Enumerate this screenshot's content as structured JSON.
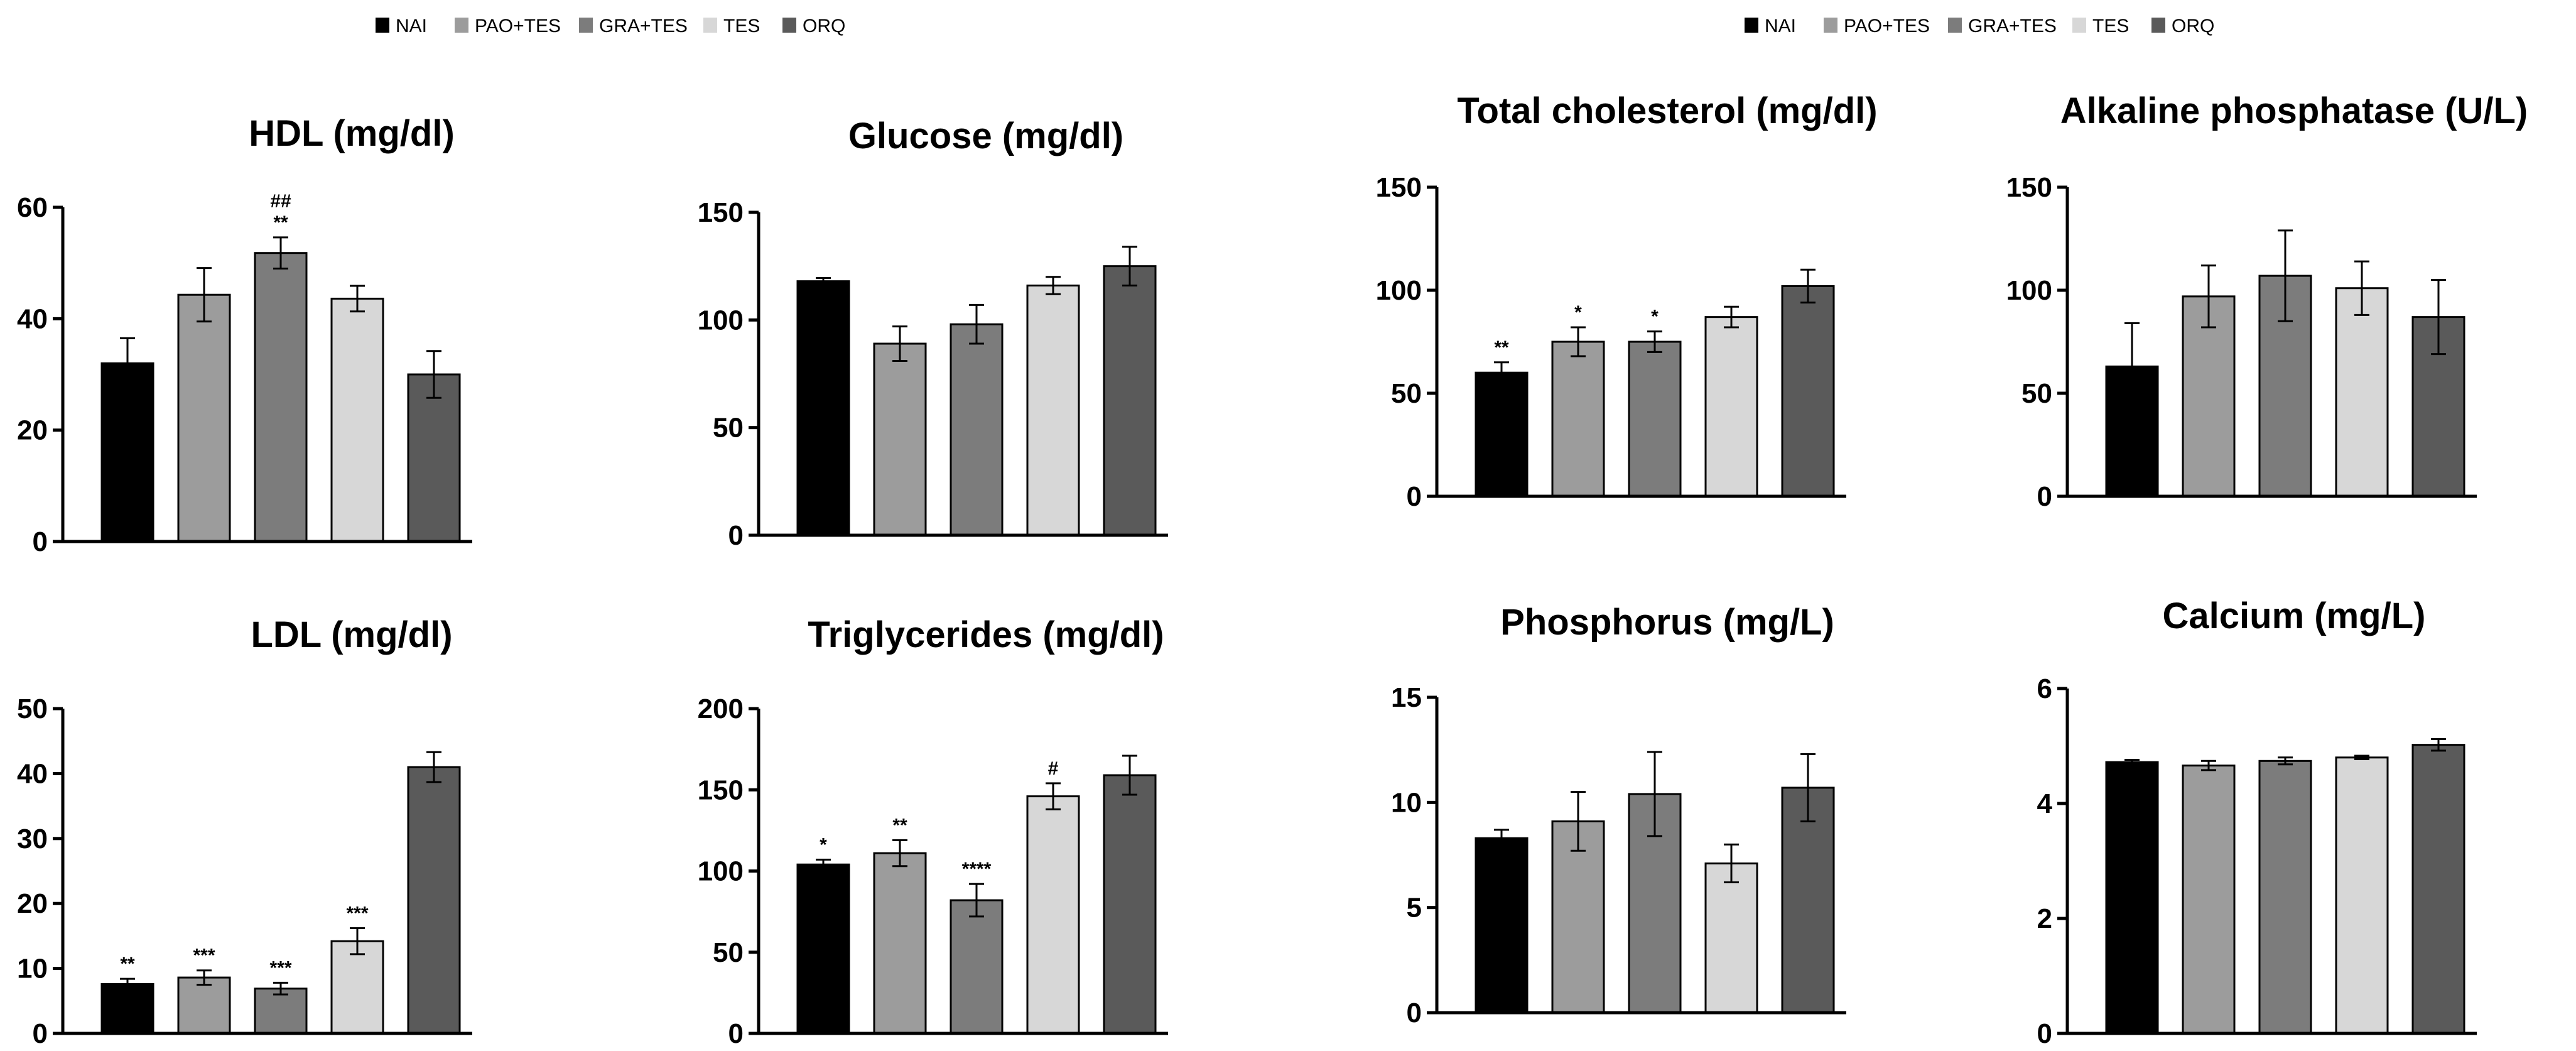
{
  "groups": [
    "NAI",
    "PAO+TES",
    "GRA+TES",
    "TES",
    "ORQ"
  ],
  "group_colors": [
    "#000000",
    "#9c9c9c",
    "#7c7c7c",
    "#d7d7d7",
    "#5a5a5a"
  ],
  "chart_data": [
    {
      "type": "bar",
      "title": "HDL (mg/dl)",
      "categories": [
        "NAI",
        "PAO+TES",
        "GRA+TES",
        "TES",
        "ORQ"
      ],
      "values": [
        32,
        44.3,
        51.8,
        43.6,
        30
      ],
      "errors": [
        4.5,
        4.8,
        2.8,
        2.3,
        4.2
      ],
      "annotations": [
        "",
        "",
        "**\n##",
        "",
        ""
      ],
      "ylim": [
        0,
        60
      ],
      "yticks": [
        "0",
        "20",
        "40",
        "60"
      ]
    },
    {
      "type": "bar",
      "title": "Glucose (mg/dl)",
      "categories": [
        "NAI",
        "PAO+TES",
        "GRA+TES",
        "TES",
        "ORQ"
      ],
      "values": [
        118,
        89,
        98,
        116,
        125
      ],
      "errors": [
        1.5,
        8,
        9,
        4,
        9
      ],
      "annotations": [
        "",
        "",
        "",
        "",
        ""
      ],
      "ylim": [
        0,
        150
      ],
      "yticks": [
        "0",
        "50",
        "100",
        "150"
      ]
    },
    {
      "type": "bar",
      "title": "LDL (mg/dl)",
      "categories": [
        "NAI",
        "PAO+TES",
        "GRA+TES",
        "TES",
        "ORQ"
      ],
      "values": [
        7.6,
        8.6,
        6.9,
        14.2,
        41
      ],
      "errors": [
        0.8,
        1.1,
        0.9,
        2,
        2.3
      ],
      "annotations": [
        "**",
        "***",
        "***",
        "***",
        ""
      ],
      "ylim": [
        0,
        50
      ],
      "yticks": [
        "0",
        "10",
        "20",
        "30",
        "40",
        "50"
      ]
    },
    {
      "type": "bar",
      "title": "Triglycerides (mg/dl)",
      "categories": [
        "NAI",
        "PAO+TES",
        "GRA+TES",
        "TES",
        "ORQ"
      ],
      "values": [
        104,
        111,
        82,
        146,
        159
      ],
      "errors": [
        3,
        8,
        10,
        8,
        12
      ],
      "annotations": [
        "*",
        "**",
        "****",
        "#",
        ""
      ],
      "ylim": [
        0,
        200
      ],
      "yticks": [
        "0",
        "50",
        "100",
        "150",
        "200"
      ]
    },
    {
      "type": "bar",
      "title": "Total cholesterol (mg/dl)",
      "categories": [
        "NAI",
        "PAO+TES",
        "GRA+TES",
        "TES",
        "ORQ"
      ],
      "values": [
        60,
        75,
        75,
        87,
        102
      ],
      "errors": [
        5,
        7,
        5,
        5,
        8
      ],
      "annotations": [
        "**",
        "*",
        "*",
        "",
        ""
      ],
      "ylim": [
        0,
        150
      ],
      "yticks": [
        "0",
        "50",
        "100",
        "150"
      ]
    },
    {
      "type": "bar",
      "title": "Alkaline phosphatase (U/L)",
      "categories": [
        "NAI",
        "PAO+TES",
        "GRA+TES",
        "TES",
        "ORQ"
      ],
      "values": [
        63,
        97,
        107,
        101,
        87
      ],
      "errors": [
        21,
        15,
        22,
        13,
        18
      ],
      "annotations": [
        "",
        "",
        "",
        "",
        ""
      ],
      "ylim": [
        0,
        150
      ],
      "yticks": [
        "0",
        "50",
        "100",
        "150"
      ]
    },
    {
      "type": "bar",
      "title": "Phosphorus (mg/L)",
      "categories": [
        "NAI",
        "PAO+TES",
        "GRA+TES",
        "TES",
        "ORQ"
      ],
      "values": [
        8.3,
        9.1,
        10.4,
        7.1,
        10.7
      ],
      "errors": [
        0.4,
        1.4,
        2,
        0.9,
        1.6
      ],
      "annotations": [
        "",
        "",
        "",
        "",
        ""
      ],
      "ylim": [
        0,
        15
      ],
      "yticks": [
        "0",
        "5",
        "10",
        "15"
      ]
    },
    {
      "type": "bar",
      "title": "Calcium (mg/L)",
      "categories": [
        "NAI",
        "PAO+TES",
        "GRA+TES",
        "TES",
        "ORQ"
      ],
      "values": [
        4.72,
        4.66,
        4.74,
        4.8,
        5.02
      ],
      "errors": [
        0.04,
        0.08,
        0.06,
        0.03,
        0.1
      ],
      "annotations": [
        "",
        "",
        "",
        "",
        ""
      ],
      "ylim": [
        0,
        6
      ],
      "yticks": [
        "0",
        "2",
        "4",
        "6"
      ]
    }
  ]
}
